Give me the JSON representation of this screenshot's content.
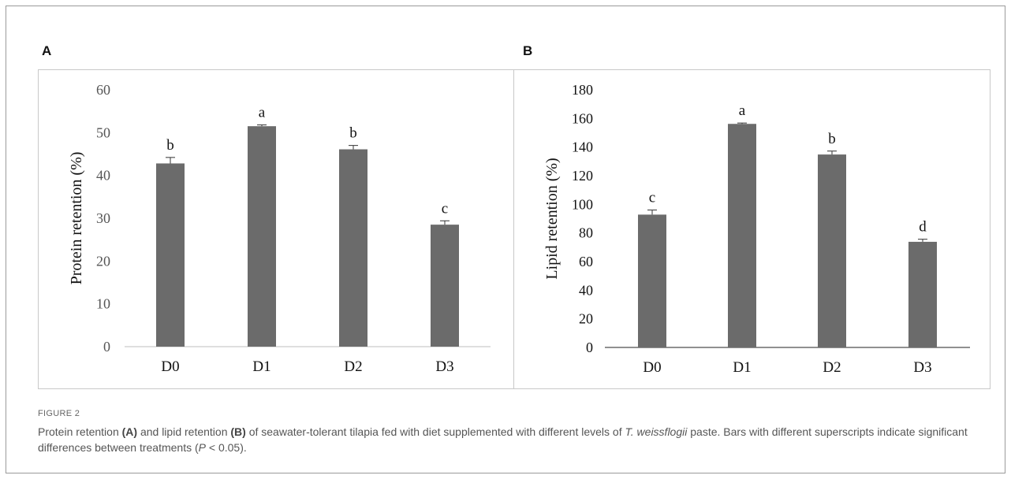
{
  "panels": [
    {
      "letter": "A",
      "chart_data": {
        "type": "bar",
        "categories": [
          "D0",
          "D1",
          "D2",
          "D3"
        ],
        "values": [
          42.8,
          51.5,
          46.1,
          28.5
        ],
        "errors": [
          1.4,
          0.3,
          0.9,
          0.9
        ],
        "superscripts": [
          "b",
          "a",
          "b",
          "c"
        ],
        "ylabel": "Protein retention (%)",
        "ylim": [
          0,
          60
        ],
        "yticks": [
          0,
          10,
          20,
          30,
          40,
          50,
          60
        ],
        "bar_color": "#6b6b6b",
        "grid": false
      }
    },
    {
      "letter": "B",
      "chart_data": {
        "type": "bar",
        "categories": [
          "D0",
          "D1",
          "D2",
          "D3"
        ],
        "values": [
          92.8,
          156.2,
          134.8,
          73.8
        ],
        "errors": [
          3.2,
          0.6,
          2.4,
          1.8
        ],
        "superscripts": [
          "c",
          "a",
          "b",
          "d"
        ],
        "ylabel": "Lipid retention (%)",
        "ylim": [
          0,
          180
        ],
        "yticks": [
          0,
          20,
          40,
          60,
          80,
          100,
          120,
          140,
          160,
          180
        ],
        "bar_color": "#6b6b6b",
        "grid": false
      }
    }
  ],
  "caption": {
    "label": "FIGURE 2",
    "parts": [
      {
        "t": "Protein retention ",
        "s": ""
      },
      {
        "t": "(A)",
        "s": "b"
      },
      {
        "t": " and lipid retention ",
        "s": ""
      },
      {
        "t": "(B)",
        "s": "b"
      },
      {
        "t": " of seawater-tolerant tilapia fed with diet supplemented with different levels of ",
        "s": ""
      },
      {
        "t": "T. weissflogii",
        "s": "i"
      },
      {
        "t": " paste. Bars with different superscripts indicate significant differences between treatments (",
        "s": ""
      },
      {
        "t": "P",
        "s": "i"
      },
      {
        "t": " < 0.05).",
        "s": ""
      }
    ]
  }
}
